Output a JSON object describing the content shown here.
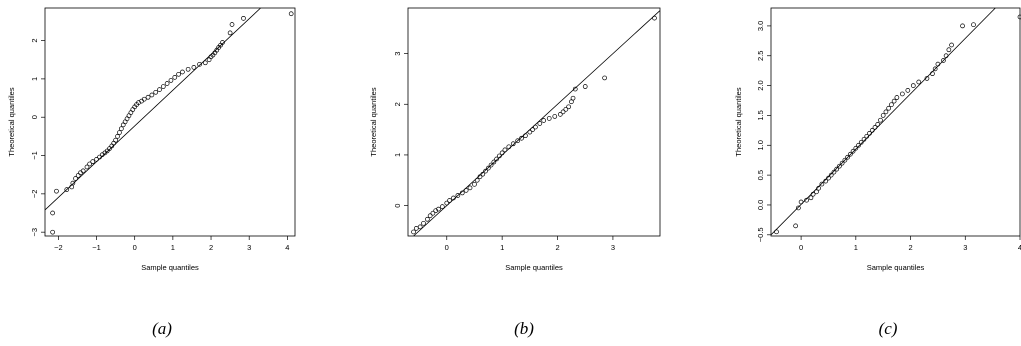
{
  "chart_data": [
    {
      "type": "scatter",
      "caption": "(a)",
      "xlabel": "Sample quantiles",
      "ylabel": "Theoretical quantiles",
      "xlim": [
        -2.35,
        4.2
      ],
      "ylim": [
        -3.1,
        2.85
      ],
      "xticks": [
        -2,
        -1,
        0,
        1,
        2,
        3,
        4
      ],
      "yticks": [
        -3,
        -2,
        -1,
        0,
        1,
        2
      ],
      "xtick_labels": [
        "−2",
        "−1",
        "0",
        "1",
        "2",
        "3",
        "4"
      ],
      "ytick_labels": [
        "−3",
        "−2",
        "−1",
        "0",
        "1",
        "2"
      ],
      "grid": false,
      "reference_line": [
        [
          -2.35,
          -2.42
        ],
        [
          3.3,
          2.85
        ]
      ],
      "points": [
        [
          -2.15,
          -3.0
        ],
        [
          -2.15,
          -2.5
        ],
        [
          -2.05,
          -1.93
        ],
        [
          -1.78,
          -1.89
        ],
        [
          -1.65,
          -1.82
        ],
        [
          -1.62,
          -1.72
        ],
        [
          -1.55,
          -1.6
        ],
        [
          -1.48,
          -1.52
        ],
        [
          -1.42,
          -1.45
        ],
        [
          -1.35,
          -1.4
        ],
        [
          -1.25,
          -1.3
        ],
        [
          -1.18,
          -1.22
        ],
        [
          -1.1,
          -1.16
        ],
        [
          -1.0,
          -1.1
        ],
        [
          -0.92,
          -1.04
        ],
        [
          -0.85,
          -0.98
        ],
        [
          -0.78,
          -0.93
        ],
        [
          -0.72,
          -0.88
        ],
        [
          -0.66,
          -0.82
        ],
        [
          -0.6,
          -0.75
        ],
        [
          -0.55,
          -0.68
        ],
        [
          -0.5,
          -0.6
        ],
        [
          -0.45,
          -0.5
        ],
        [
          -0.4,
          -0.4
        ],
        [
          -0.35,
          -0.3
        ],
        [
          -0.3,
          -0.2
        ],
        [
          -0.25,
          -0.12
        ],
        [
          -0.2,
          -0.04
        ],
        [
          -0.15,
          0.04
        ],
        [
          -0.1,
          0.12
        ],
        [
          -0.05,
          0.2
        ],
        [
          0.0,
          0.27
        ],
        [
          0.05,
          0.33
        ],
        [
          0.1,
          0.38
        ],
        [
          0.18,
          0.42
        ],
        [
          0.25,
          0.47
        ],
        [
          0.35,
          0.52
        ],
        [
          0.45,
          0.58
        ],
        [
          0.55,
          0.65
        ],
        [
          0.65,
          0.72
        ],
        [
          0.75,
          0.8
        ],
        [
          0.85,
          0.88
        ],
        [
          0.95,
          0.96
        ],
        [
          1.05,
          1.04
        ],
        [
          1.15,
          1.12
        ],
        [
          1.25,
          1.18
        ],
        [
          1.4,
          1.25
        ],
        [
          1.55,
          1.3
        ],
        [
          1.7,
          1.38
        ],
        [
          1.85,
          1.42
        ],
        [
          1.95,
          1.5
        ],
        [
          2.0,
          1.58
        ],
        [
          2.05,
          1.62
        ],
        [
          2.1,
          1.68
        ],
        [
          2.15,
          1.75
        ],
        [
          2.2,
          1.82
        ],
        [
          2.25,
          1.88
        ],
        [
          2.3,
          1.95
        ],
        [
          2.5,
          2.2
        ],
        [
          2.55,
          2.42
        ],
        [
          2.85,
          2.58
        ],
        [
          4.1,
          2.7
        ]
      ]
    },
    {
      "type": "scatter",
      "caption": "(b)",
      "xlabel": "Sample quantiles",
      "ylabel": "Theoretical quantiles",
      "xlim": [
        -0.7,
        3.85
      ],
      "ylim": [
        -0.6,
        3.9
      ],
      "xticks": [
        0,
        1,
        2,
        3
      ],
      "yticks": [
        0,
        1,
        2,
        3
      ],
      "xtick_labels": [
        "0",
        "1",
        "2",
        "3"
      ],
      "ytick_labels": [
        "0",
        "1",
        "2",
        "3"
      ],
      "grid": false,
      "reference_line": [
        [
          -0.6,
          -0.6
        ],
        [
          3.85,
          3.85
        ]
      ],
      "points": [
        [
          -0.6,
          -0.52
        ],
        [
          -0.55,
          -0.45
        ],
        [
          -0.48,
          -0.42
        ],
        [
          -0.42,
          -0.35
        ],
        [
          -0.35,
          -0.27
        ],
        [
          -0.3,
          -0.2
        ],
        [
          -0.25,
          -0.15
        ],
        [
          -0.2,
          -0.1
        ],
        [
          -0.15,
          -0.07
        ],
        [
          -0.08,
          -0.02
        ],
        [
          0.0,
          0.05
        ],
        [
          0.05,
          0.1
        ],
        [
          0.12,
          0.15
        ],
        [
          0.2,
          0.2
        ],
        [
          0.28,
          0.25
        ],
        [
          0.35,
          0.3
        ],
        [
          0.42,
          0.35
        ],
        [
          0.5,
          0.42
        ],
        [
          0.55,
          0.5
        ],
        [
          0.6,
          0.57
        ],
        [
          0.65,
          0.62
        ],
        [
          0.7,
          0.68
        ],
        [
          0.75,
          0.74
        ],
        [
          0.8,
          0.8
        ],
        [
          0.85,
          0.86
        ],
        [
          0.9,
          0.92
        ],
        [
          0.95,
          0.98
        ],
        [
          1.0,
          1.04
        ],
        [
          1.05,
          1.1
        ],
        [
          1.12,
          1.16
        ],
        [
          1.2,
          1.22
        ],
        [
          1.28,
          1.28
        ],
        [
          1.35,
          1.33
        ],
        [
          1.42,
          1.38
        ],
        [
          1.5,
          1.45
        ],
        [
          1.55,
          1.5
        ],
        [
          1.6,
          1.55
        ],
        [
          1.68,
          1.62
        ],
        [
          1.75,
          1.68
        ],
        [
          1.85,
          1.72
        ],
        [
          1.95,
          1.76
        ],
        [
          2.05,
          1.8
        ],
        [
          2.1,
          1.85
        ],
        [
          2.15,
          1.9
        ],
        [
          2.2,
          1.95
        ],
        [
          2.25,
          2.05
        ],
        [
          2.28,
          2.12
        ],
        [
          2.32,
          2.3
        ],
        [
          2.5,
          2.35
        ],
        [
          2.85,
          2.52
        ],
        [
          3.75,
          3.7
        ]
      ]
    },
    {
      "type": "scatter",
      "caption": "(c)",
      "xlabel": "Sample quantiles",
      "ylabel": "Theoretical quantiles",
      "xlim": [
        -0.55,
        4.0
      ],
      "ylim": [
        -0.52,
        3.3
      ],
      "xticks": [
        0,
        1,
        2,
        3,
        4
      ],
      "yticks": [
        -0.5,
        0.0,
        0.5,
        1.0,
        1.5,
        2.0,
        2.5,
        3.0
      ],
      "xtick_labels": [
        "0",
        "1",
        "2",
        "3",
        "4"
      ],
      "ytick_labels": [
        "−0.5",
        "0.0",
        "0.5",
        "1.0",
        "1.5",
        "2.0",
        "2.5",
        "3.0"
      ],
      "grid": false,
      "reference_line": [
        [
          -0.55,
          -0.5
        ],
        [
          3.55,
          3.3
        ]
      ],
      "points": [
        [
          -0.45,
          -0.45
        ],
        [
          -0.1,
          -0.35
        ],
        [
          -0.05,
          -0.05
        ],
        [
          0.0,
          0.05
        ],
        [
          0.1,
          0.08
        ],
        [
          0.18,
          0.12
        ],
        [
          0.22,
          0.18
        ],
        [
          0.28,
          0.22
        ],
        [
          0.32,
          0.28
        ],
        [
          0.38,
          0.35
        ],
        [
          0.45,
          0.4
        ],
        [
          0.5,
          0.45
        ],
        [
          0.55,
          0.5
        ],
        [
          0.6,
          0.55
        ],
        [
          0.65,
          0.6
        ],
        [
          0.7,
          0.65
        ],
        [
          0.75,
          0.7
        ],
        [
          0.8,
          0.75
        ],
        [
          0.85,
          0.8
        ],
        [
          0.9,
          0.85
        ],
        [
          0.95,
          0.9
        ],
        [
          1.0,
          0.95
        ],
        [
          1.05,
          1.0
        ],
        [
          1.1,
          1.05
        ],
        [
          1.15,
          1.1
        ],
        [
          1.2,
          1.15
        ],
        [
          1.25,
          1.2
        ],
        [
          1.3,
          1.25
        ],
        [
          1.35,
          1.3
        ],
        [
          1.4,
          1.35
        ],
        [
          1.45,
          1.42
        ],
        [
          1.5,
          1.5
        ],
        [
          1.55,
          1.56
        ],
        [
          1.6,
          1.62
        ],
        [
          1.65,
          1.68
        ],
        [
          1.7,
          1.74
        ],
        [
          1.75,
          1.8
        ],
        [
          1.85,
          1.86
        ],
        [
          1.95,
          1.92
        ],
        [
          2.05,
          2.0
        ],
        [
          2.15,
          2.06
        ],
        [
          2.3,
          2.12
        ],
        [
          2.4,
          2.2
        ],
        [
          2.45,
          2.28
        ],
        [
          2.5,
          2.36
        ],
        [
          2.6,
          2.42
        ],
        [
          2.65,
          2.5
        ],
        [
          2.7,
          2.6
        ],
        [
          2.75,
          2.68
        ],
        [
          2.95,
          3.0
        ],
        [
          3.15,
          3.02
        ],
        [
          4.0,
          3.15
        ]
      ]
    }
  ]
}
